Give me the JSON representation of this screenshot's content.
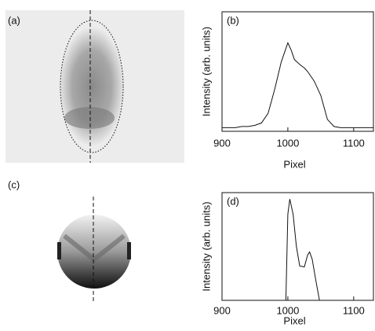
{
  "image_labels": [
    "(a)",
    "(c)"
  ],
  "chart_data": [
    {
      "type": "line",
      "label": "(b)",
      "x_label": "Pixel",
      "y_label": "Intensity (arb. units)",
      "xlim": [
        900,
        1130
      ],
      "ylim": [
        0,
        1
      ],
      "xticks": [
        900,
        1000,
        1100
      ],
      "color": "#111111",
      "x": [
        900,
        910,
        920,
        930,
        940,
        950,
        960,
        970,
        980,
        990,
        1000,
        1005,
        1010,
        1020,
        1025,
        1030,
        1040,
        1050,
        1060,
        1070,
        1080,
        1090,
        1100,
        1110,
        1120,
        1130
      ],
      "values": [
        0.03,
        0.03,
        0.03,
        0.04,
        0.04,
        0.05,
        0.07,
        0.15,
        0.35,
        0.58,
        0.74,
        0.68,
        0.6,
        0.55,
        0.53,
        0.5,
        0.42,
        0.3,
        0.1,
        0.04,
        0.03,
        0.03,
        0.03,
        0.03,
        0.03,
        0.03
      ]
    },
    {
      "type": "line",
      "label": "(d)",
      "x_label": "Pixel",
      "y_label": "Intensity (arb. units)",
      "xlim": [
        900,
        1130
      ],
      "ylim": [
        0,
        1
      ],
      "xticks": [
        900,
        1000,
        1100
      ],
      "color": "#111111",
      "x": [
        997,
        1000,
        1003,
        1008,
        1013,
        1018,
        1025,
        1030,
        1033,
        1037,
        1042,
        1048
      ],
      "values": [
        0,
        0.8,
        0.94,
        0.8,
        0.5,
        0.32,
        0.31,
        0.42,
        0.45,
        0.38,
        0.2,
        0
      ]
    }
  ]
}
